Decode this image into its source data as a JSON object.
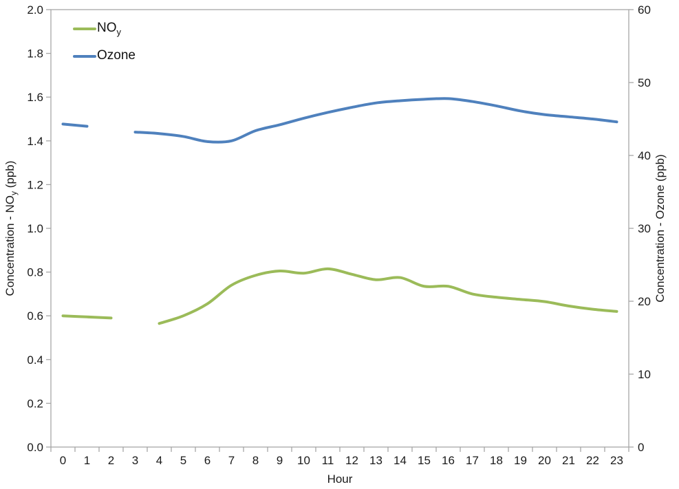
{
  "chart_data": {
    "type": "line",
    "title": "",
    "xlabel": "Hour",
    "x": [
      0,
      1,
      2,
      3,
      4,
      5,
      6,
      7,
      8,
      9,
      10,
      11,
      12,
      13,
      14,
      15,
      16,
      17,
      18,
      19,
      20,
      21,
      22,
      23
    ],
    "x_tick_labels": [
      "0",
      "1",
      "2",
      "3",
      "4",
      "5",
      "6",
      "7",
      "8",
      "9",
      "10",
      "11",
      "12",
      "13",
      "14",
      "15",
      "16",
      "17",
      "18",
      "19",
      "20",
      "21",
      "22",
      "23"
    ],
    "left_axis": {
      "title_prefix": "Concentration - NO",
      "title_sub": "y",
      "title_suffix": " (ppb)",
      "min": 0.0,
      "max": 2.0,
      "tick_labels": [
        "0.0",
        "0.2",
        "0.4",
        "0.6",
        "0.8",
        "1.0",
        "1.2",
        "1.4",
        "1.6",
        "1.8",
        "2.0"
      ]
    },
    "right_axis": {
      "title": "Concentration - Ozone (ppb)",
      "min": 0,
      "max": 60,
      "tick_labels": [
        "0",
        "10",
        "20",
        "30",
        "40",
        "50",
        "60"
      ]
    },
    "grid": false,
    "legend_position": "top-left-inside",
    "series": [
      {
        "name": "NOy",
        "axis": "left",
        "color": "#9BBB59",
        "values": [
          0.6,
          0.595,
          0.59,
          null,
          0.565,
          0.6,
          0.655,
          0.74,
          0.785,
          0.805,
          0.795,
          0.815,
          0.79,
          0.765,
          0.775,
          0.735,
          0.735,
          0.7,
          0.685,
          0.675,
          0.665,
          0.645,
          0.63,
          0.62
        ]
      },
      {
        "name": "Ozone",
        "axis": "right",
        "color": "#4F81BD",
        "values": [
          44.3,
          44.0,
          null,
          43.2,
          43.0,
          42.6,
          41.9,
          42.0,
          43.4,
          44.2,
          45.1,
          45.9,
          46.6,
          47.2,
          47.5,
          47.7,
          47.8,
          47.4,
          46.8,
          46.1,
          45.6,
          45.3,
          45.0,
          44.6
        ]
      }
    ]
  },
  "legend": {
    "items": [
      {
        "label": "NO",
        "sub": "y"
      },
      {
        "label": "Ozone",
        "sub": ""
      }
    ]
  },
  "colors": {
    "axis_line": "#A6A6A6",
    "tick_text": "#1a1a1a",
    "background": "#FFFFFF"
  }
}
